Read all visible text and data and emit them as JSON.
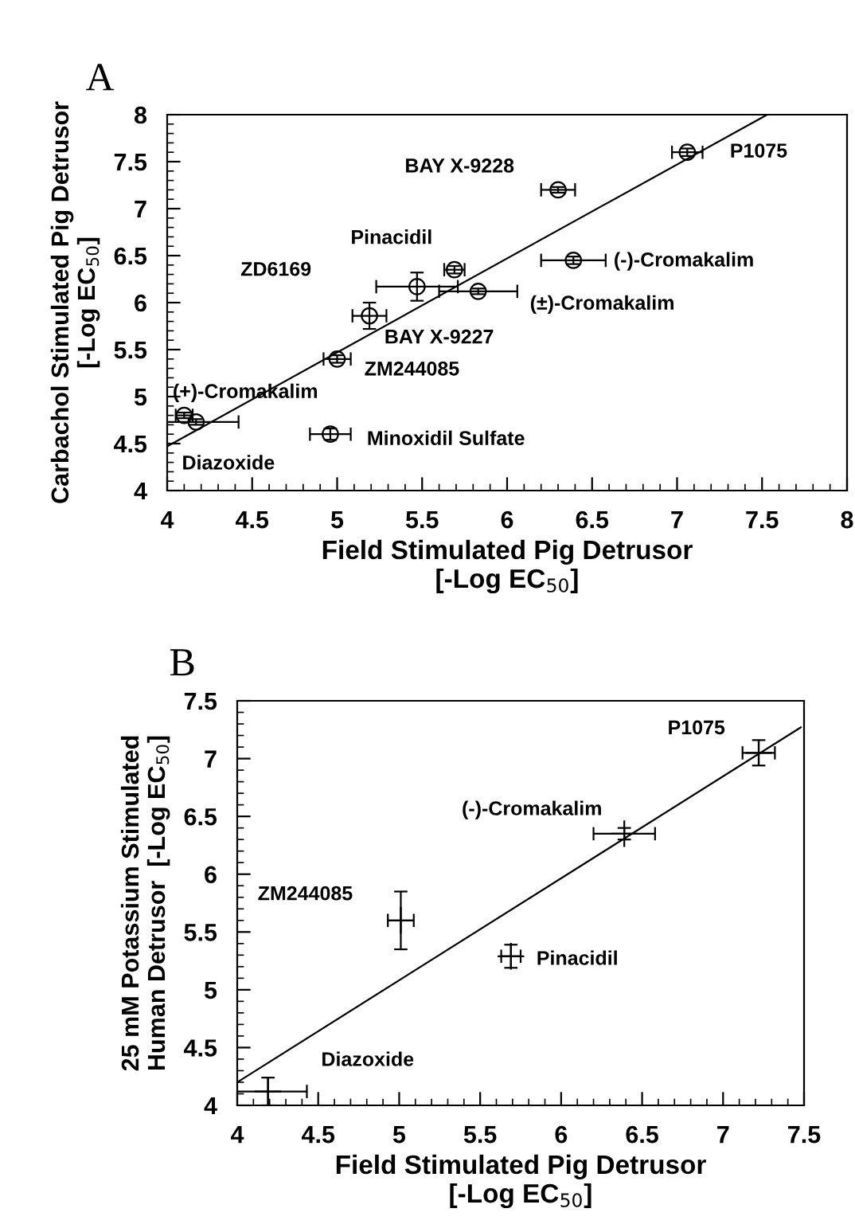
{
  "chart_data": [
    {
      "type": "scatter",
      "title": "A",
      "xlabel": "Field Stimulated Pig Detrusor\n[-Log EC$_{50}$]",
      "ylabel": "Carbachol Stimulated Pig Detrusor\n[-Log EC$_{50}$]",
      "xlim": [
        4,
        8
      ],
      "ylim": [
        4,
        8
      ],
      "xticks": [
        4,
        4.5,
        5,
        5.5,
        6,
        6.5,
        7,
        7.5,
        8
      ],
      "yticks": [
        4,
        4.5,
        5,
        5.5,
        6,
        6.5,
        7,
        7.5,
        8
      ],
      "grid": false,
      "legend": false,
      "series": [
        {
          "type": "scatter",
          "marker": "circle",
          "color": "#000000",
          "x": [
            4.1,
            4.17,
            4.96,
            5.0,
            5.19,
            5.47,
            5.69,
            5.83,
            6.3,
            6.39,
            7.06
          ],
          "values": [
            4.8,
            4.73,
            4.6,
            5.4,
            5.86,
            6.17,
            6.35,
            6.12,
            7.2,
            6.45,
            7.6
          ],
          "errors": [
            0.03,
            0.03,
            0.06,
            0.04,
            0.14,
            0.15,
            0.04,
            0.03,
            0.03,
            0.04,
            0.04
          ],
          "xerrors": [
            0.05,
            0.25,
            0.12,
            0.08,
            0.1,
            0.24,
            0.06,
            0.23,
            0.1,
            0.19,
            0.09
          ]
        },
        {
          "type": "line",
          "color": "#000000",
          "x": [
            4,
            7.53
          ],
          "values": [
            4.47,
            8.0
          ]
        }
      ],
      "annotations": [
        "BAY X-9228",
        "Pinacidil",
        "ZD6169",
        "(±)-Cromakalim",
        "(-)-Cromakalim",
        "BAY X-9227",
        "ZM244085",
        "(+)-Cromakalim",
        "Minoxidil Sulfate",
        "Diazoxide",
        "P1075"
      ]
    },
    {
      "type": "scatter",
      "title": "B",
      "xlabel": "Field Stimulated Pig Detrusor\n[-Log EC$_{50}$]",
      "ylabel": "25 mM Potassium Stimulated\nHuman Detrusor  [-Log EC$_{50}$]",
      "xlim": [
        4,
        7.5
      ],
      "ylim": [
        4,
        7.5
      ],
      "xticks": [
        4,
        4.5,
        5,
        5.5,
        6,
        6.5,
        7,
        7.5
      ],
      "yticks": [
        4,
        4.5,
        5,
        5.5,
        6,
        6.5,
        7,
        7.5
      ],
      "grid": false,
      "legend": false,
      "series": [
        {
          "type": "scatter",
          "marker": "cross",
          "color": "#000000",
          "x": [
            4.19,
            5.01,
            5.69,
            6.39,
            7.22
          ],
          "values": [
            4.12,
            5.6,
            5.29,
            6.35,
            7.05
          ],
          "errors": [
            0.12,
            0.25,
            0.1,
            0.05,
            0.11
          ],
          "xerrors": [
            0.24,
            0.08,
            0.06,
            0.19,
            0.1
          ]
        },
        {
          "type": "line",
          "color": "#000000",
          "x": [
            4,
            7.48
          ],
          "values": [
            4.2,
            7.27
          ]
        }
      ],
      "annotations": [
        "P1075",
        "(-)-Cromakalim",
        "ZM244085",
        "Pinacidil",
        "Diazoxide"
      ]
    }
  ]
}
